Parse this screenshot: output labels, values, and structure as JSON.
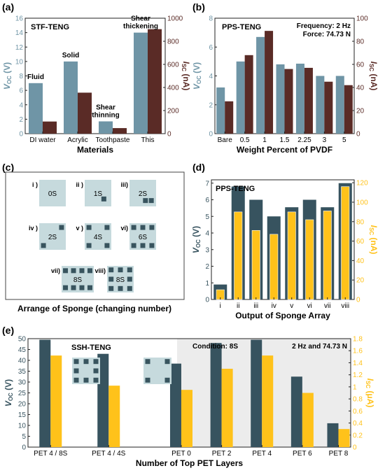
{
  "panel_labels": {
    "a": "(a)",
    "b": "(b)",
    "c": "(c)",
    "d": "(d)",
    "e": "(e)"
  },
  "colors": {
    "voc_blue": "#6f95a6",
    "isc_brown": "#5a2b26",
    "voc_dark": "#37535f",
    "isc_yellow": "#ffc21a",
    "sponge_bg": "#c6dadd",
    "sponge_sq": "#38545e"
  },
  "chart_data": [
    {
      "id": "a",
      "type": "bar",
      "title": "STF-TENG",
      "categories": [
        "DI water",
        "Acrylic",
        "Toothpaste",
        "This"
      ],
      "category_notes": [
        "Fluid",
        "Solid",
        "Shear\nthinning",
        "Shear\nthickening"
      ],
      "xlabel": "Materials",
      "series": [
        {
          "name": "V_OC",
          "axis": "left",
          "values": [
            7.0,
            10.0,
            1.7,
            14.0
          ]
        },
        {
          "name": "I_SC",
          "axis": "right",
          "values": [
            105,
            355,
            48,
            905
          ]
        }
      ],
      "ylabel_left": "V_OC (V)",
      "ylabel_right": "I_SC (nA)",
      "ylim_left": [
        0,
        16
      ],
      "ylim_right": [
        0,
        1000
      ],
      "yticks_left": [
        0,
        2,
        4,
        6,
        8,
        10,
        12,
        14,
        16
      ],
      "yticks_right": [
        0,
        200,
        400,
        600,
        800,
        1000
      ]
    },
    {
      "id": "b",
      "type": "bar",
      "title": "PPS-TENG",
      "annotation": [
        "Frequency: 2 Hz",
        "Force: 74.73 N"
      ],
      "categories": [
        "Bare",
        "0.5",
        "1",
        "1.5",
        "2.25",
        "3",
        "5"
      ],
      "xlabel": "Weight Percent of PVDF",
      "series": [
        {
          "name": "V_OC",
          "axis": "left",
          "values": [
            3.2,
            5.0,
            6.7,
            4.8,
            4.85,
            4.0,
            4.0
          ]
        },
        {
          "name": "I_SC",
          "axis": "right",
          "values": [
            28,
            68,
            89,
            56,
            57,
            45,
            42
          ]
        }
      ],
      "ylabel_left": "V_OC (V)",
      "ylabel_right": "I_SC (nA)",
      "ylim_left": [
        0,
        8
      ],
      "ylim_right": [
        0,
        100
      ],
      "yticks_left": [
        0,
        2,
        4,
        6,
        8
      ],
      "yticks_right": [
        0,
        20,
        40,
        60,
        80,
        100
      ]
    },
    {
      "id": "d",
      "type": "bar",
      "title": "PPS-TENG",
      "categories": [
        "i",
        "ii",
        "iii",
        "iv",
        "v",
        "vi",
        "vii",
        "viii"
      ],
      "xlabel": "Output of Sponge Array",
      "series": [
        {
          "name": "V_OC",
          "axis": "left",
          "values": [
            0.9,
            6.8,
            6.0,
            5.0,
            5.55,
            6.0,
            5.55,
            7.0
          ]
        },
        {
          "name": "I_SC",
          "axis": "right",
          "values": [
            10,
            90,
            71,
            67,
            90,
            82,
            91,
            116
          ]
        }
      ],
      "ylabel_left": "V_OC (V)",
      "ylabel_right": "I_SC (nA)",
      "ylim_left": [
        0,
        7.2
      ],
      "ylim_right": [
        0,
        123
      ],
      "yticks_left": [
        0,
        1,
        2,
        3,
        4,
        5,
        6,
        7
      ],
      "yticks_right": [
        0,
        20,
        40,
        60,
        80,
        100,
        120
      ]
    },
    {
      "id": "e",
      "type": "bar",
      "title": "SSH-TENG",
      "annotation": [
        "Condition: 8S",
        "2 Hz and 74.73 N"
      ],
      "categories": [
        "PET 4 / 8S",
        "PET 4 / 4S",
        "PET 0",
        "PET 2",
        "PET 4",
        "PET 6",
        "PET 8"
      ],
      "xlabel": "Number of Top PET Layers",
      "series": [
        {
          "name": "V_OC",
          "axis": "left",
          "values": [
            49.5,
            43,
            38.5,
            48,
            49.5,
            32.5,
            11
          ]
        },
        {
          "name": "I_SC",
          "axis": "right",
          "values": [
            1.52,
            1.02,
            0.95,
            1.3,
            1.52,
            0.9,
            0.3
          ]
        }
      ],
      "ylabel_left": "V_OC (V)",
      "ylabel_right": "I_SC (μA)",
      "ylim_left": [
        0,
        50
      ],
      "ylim_right": [
        0,
        1.8
      ],
      "yticks_left": [
        0,
        5,
        10,
        15,
        20,
        25,
        30,
        35,
        40,
        45,
        50
      ],
      "yticks_right": [
        0,
        0.2,
        0.4,
        0.6,
        0.8,
        1.0,
        1.2,
        1.4,
        1.6,
        1.8
      ]
    }
  ],
  "sponge_panel": {
    "caption": "Arrange of Sponge (changing number)",
    "cells": [
      {
        "roman": "i )",
        "label": "0S"
      },
      {
        "roman": "ii )",
        "label": "1S"
      },
      {
        "roman": "iii)",
        "label": "2S"
      },
      {
        "roman": "iv )",
        "label": "2S"
      },
      {
        "roman": "v )",
        "label": "4S"
      },
      {
        "roman": "vi)",
        "label": "6S"
      },
      {
        "roman": "vii)",
        "label": "8S"
      },
      {
        "roman": "viii)",
        "label": "8S"
      }
    ]
  }
}
